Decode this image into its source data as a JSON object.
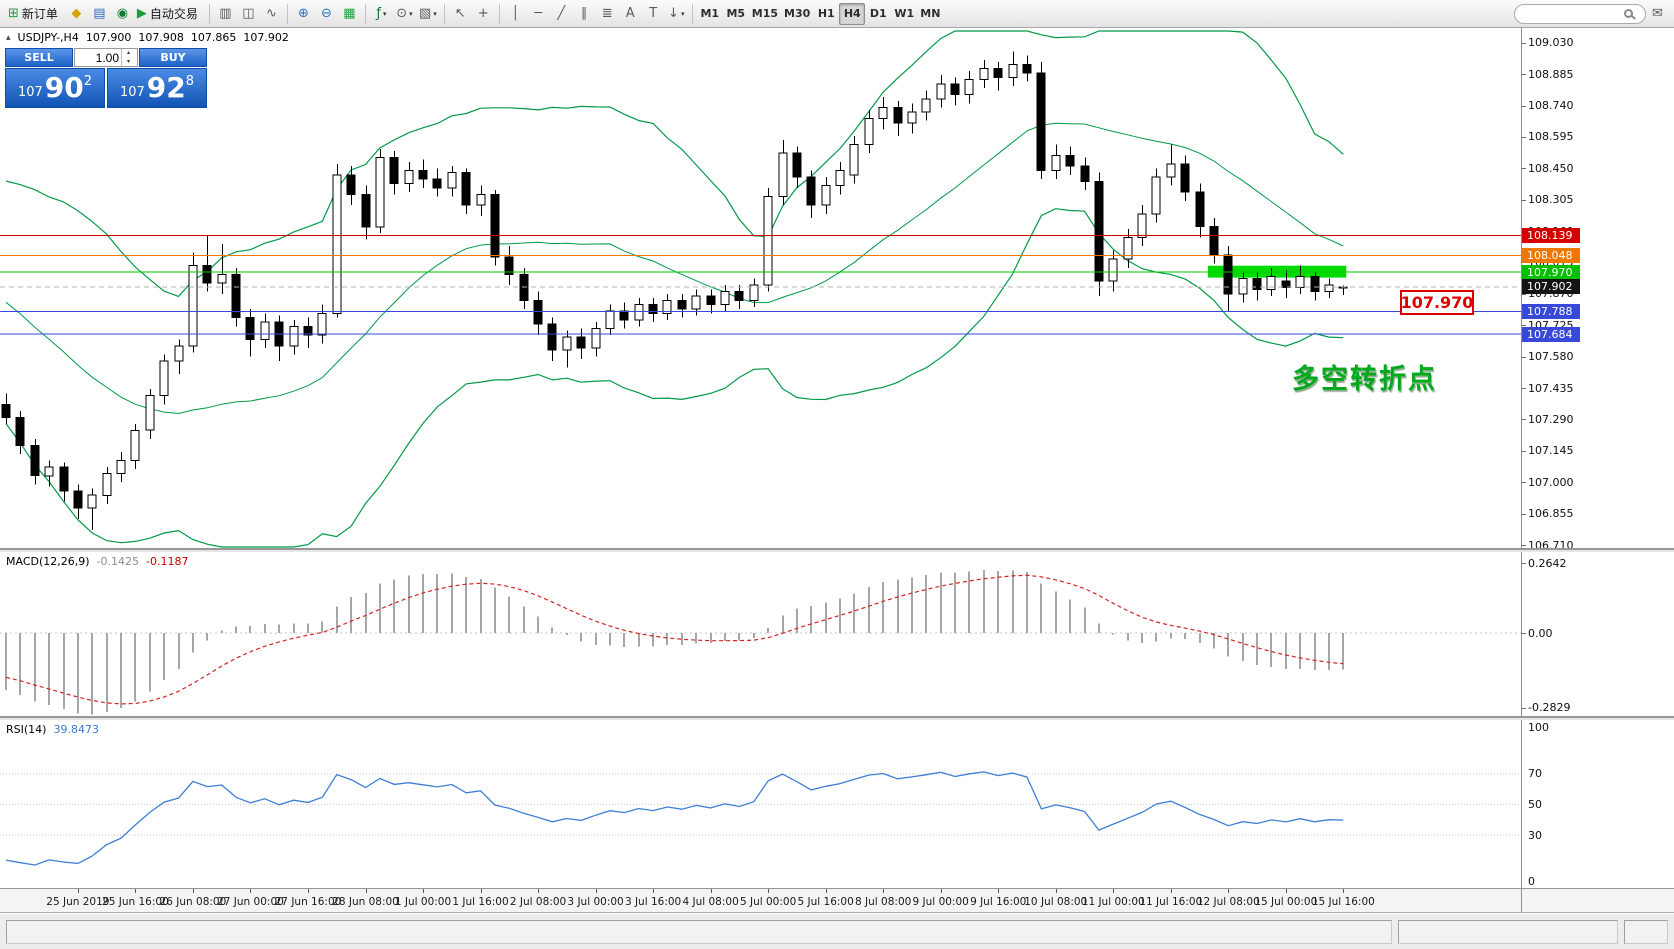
{
  "icons": {
    "new_order": "⊞",
    "metaeditor": "◆",
    "market_watch": "▤",
    "navigator": "◉",
    "autotrading_play": "▶",
    "bar_chart": "▥",
    "candle_chart": "◫",
    "line_chart": "∿",
    "zoom_in": "⊕",
    "zoom_out": "⊖",
    "tile_windows": "▦",
    "indicators": "ƒ",
    "periods": "⊙",
    "templates": "▧",
    "cursor": "↖",
    "crosshair": "+",
    "vline": "│",
    "hline": "─",
    "trendline": "╱",
    "channel": "∥",
    "fibonacci": "≣",
    "text": "A",
    "label": "T",
    "arrows": "↓",
    "caret": "▾",
    "collapse": "▴",
    "spin_up": "▴",
    "spin_down": "▾",
    "mail": "✉"
  },
  "toolbar": {
    "new_order": "新订单",
    "autotrading": "自动交易",
    "timeframes": [
      "M1",
      "M5",
      "M15",
      "M30",
      "H1",
      "H4",
      "D1",
      "W1",
      "MN"
    ],
    "active_timeframe": "H4",
    "search_value": ""
  },
  "chart": {
    "header": {
      "symbol": "USDJPY-,H4",
      "open": "107.900",
      "high": "107.908",
      "low": "107.865",
      "close": "107.902"
    },
    "oct": {
      "sell": "SELL",
      "buy": "BUY",
      "lot": "1.00",
      "sell_price": {
        "prefix": "107",
        "big": "90",
        "sup": "2"
      },
      "buy_price": {
        "prefix": "107",
        "big": "92",
        "sup": "8"
      }
    },
    "axis_ticks": [
      "109.030",
      "108.885",
      "108.740",
      "108.595",
      "108.450",
      "108.305",
      "108.160",
      "108.015",
      "107.870",
      "107.725",
      "107.580",
      "107.435",
      "107.290",
      "107.145",
      "107.000",
      "106.855",
      "106.710"
    ],
    "levels": [
      {
        "price": 108.139,
        "label": "108.139",
        "line_color": "#D40000",
        "box_color": "#D40000",
        "dashed": false
      },
      {
        "price": 108.048,
        "label": "108.048",
        "line_color": "#F07800",
        "box_color": "#F07800",
        "dashed": false
      },
      {
        "price": 107.97,
        "label": "107.970",
        "line_color": "#00C800",
        "box_color": "#00BE00",
        "dashed": false
      },
      {
        "price": 107.902,
        "label": "107.902",
        "line_color": "#B4B4B4",
        "box_color": "#141414",
        "dashed": true
      },
      {
        "price": 107.788,
        "label": "107.788",
        "line_color": "#3848D8",
        "box_color": "#3848D8",
        "dashed": false
      },
      {
        "price": 107.684,
        "label": "107.684",
        "line_color": "#3848D8",
        "box_color": "#3848D8",
        "dashed": false
      }
    ],
    "highlight_zone": {
      "price_top": 108.0,
      "price_bottom": 107.945,
      "color": "#00DC00"
    },
    "annotation_price_label": "107.970",
    "annotation_text": "多空转折点"
  },
  "macd": {
    "name": "MACD(12,26,9)",
    "value_main": "-0.1425",
    "value_signal": "-0.1187",
    "ticks": [
      {
        "label": "0.2642",
        "value": 0.2642
      },
      {
        "label": "0.00",
        "value": 0
      },
      {
        "label": "-0.2829",
        "value": -0.2829
      }
    ]
  },
  "rsi": {
    "name": "RSI(14)",
    "value": "39.8473",
    "ticks": [
      {
        "label": "100",
        "value": 100
      },
      {
        "label": "70",
        "value": 70
      },
      {
        "label": "50",
        "value": 50
      },
      {
        "label": "30",
        "value": 30
      },
      {
        "label": "0",
        "value": 0
      }
    ],
    "levels": [
      70,
      50,
      30
    ]
  },
  "time_axis": [
    "25 Jun 2019",
    "25 Jun 16:00",
    "26 Jun 08:00",
    "27 Jun 00:00",
    "27 Jun 16:00",
    "28 Jun 08:00",
    "1 Jul 00:00",
    "1 Jul 16:00",
    "2 Jul 08:00",
    "3 Jul 00:00",
    "3 Jul 16:00",
    "4 Jul 08:00",
    "5 Jul 00:00",
    "5 Jul 16:00",
    "8 Jul 08:00",
    "9 Jul 00:00",
    "9 Jul 16:00",
    "10 Jul 08:00",
    "11 Jul 00:00",
    "11 Jul 16:00",
    "12 Jul 08:00",
    "15 Jul 00:00",
    "15 Jul 16:00"
  ],
  "chart_data": {
    "type": "candlestick",
    "symbol": "USDJPY-",
    "timeframe": "H4",
    "visible_price_range": [
      106.698,
      109.098
    ],
    "last_bar": {
      "open": 107.9,
      "high": 107.908,
      "low": 107.865,
      "close": 107.902
    },
    "overlays": [
      {
        "name": "Bollinger Bands",
        "color": "#009A46"
      },
      {
        "name": "MACD",
        "params": "12,26,9",
        "main": -0.1425,
        "signal": -0.1187,
        "scale": [
          -0.2829,
          0.2642
        ]
      },
      {
        "name": "RSI",
        "params": "14",
        "value": 39.8473,
        "scale": [
          0,
          100
        ]
      }
    ],
    "ohlc_format": [
      "open",
      "high",
      "low",
      "close"
    ],
    "ohlc": [
      [
        107.36,
        107.41,
        107.27,
        107.3
      ],
      [
        107.3,
        107.33,
        107.13,
        107.17
      ],
      [
        107.17,
        107.2,
        106.99,
        107.03
      ],
      [
        107.03,
        107.1,
        106.98,
        107.07
      ],
      [
        107.07,
        107.09,
        106.91,
        106.96
      ],
      [
        106.96,
        106.99,
        106.83,
        106.88
      ],
      [
        106.88,
        106.97,
        106.78,
        106.94
      ],
      [
        106.94,
        107.07,
        106.9,
        107.04
      ],
      [
        107.04,
        107.14,
        107.0,
        107.1
      ],
      [
        107.1,
        107.27,
        107.06,
        107.24
      ],
      [
        107.24,
        107.43,
        107.2,
        107.4
      ],
      [
        107.4,
        107.59,
        107.36,
        107.56
      ],
      [
        107.56,
        107.66,
        107.5,
        107.63
      ],
      [
        107.63,
        108.06,
        107.6,
        108.0
      ],
      [
        108.0,
        108.14,
        107.88,
        107.92
      ],
      [
        107.92,
        108.1,
        107.87,
        107.96
      ],
      [
        107.96,
        107.99,
        107.72,
        107.76
      ],
      [
        107.76,
        107.8,
        107.58,
        107.66
      ],
      [
        107.66,
        107.78,
        107.62,
        107.74
      ],
      [
        107.74,
        107.77,
        107.56,
        107.63
      ],
      [
        107.63,
        107.75,
        107.59,
        107.72
      ],
      [
        107.72,
        107.76,
        107.62,
        107.68
      ],
      [
        107.68,
        107.82,
        107.64,
        107.78
      ],
      [
        107.78,
        108.47,
        107.76,
        108.42
      ],
      [
        108.42,
        108.46,
        108.28,
        108.33
      ],
      [
        108.33,
        108.37,
        108.12,
        108.18
      ],
      [
        108.18,
        108.54,
        108.15,
        108.5
      ],
      [
        108.5,
        108.53,
        108.33,
        108.38
      ],
      [
        108.38,
        108.48,
        108.34,
        108.44
      ],
      [
        108.44,
        108.49,
        108.36,
        108.4
      ],
      [
        108.4,
        108.45,
        108.32,
        108.36
      ],
      [
        108.36,
        108.46,
        108.32,
        108.43
      ],
      [
        108.43,
        108.45,
        108.24,
        108.28
      ],
      [
        108.28,
        108.37,
        108.23,
        108.33
      ],
      [
        108.33,
        108.35,
        108.0,
        108.04
      ],
      [
        108.04,
        108.09,
        107.91,
        107.96
      ],
      [
        107.96,
        107.99,
        107.8,
        107.84
      ],
      [
        107.84,
        107.88,
        107.68,
        107.73
      ],
      [
        107.73,
        107.76,
        107.56,
        107.61
      ],
      [
        107.61,
        107.7,
        107.53,
        107.67
      ],
      [
        107.67,
        107.71,
        107.57,
        107.62
      ],
      [
        107.62,
        107.74,
        107.58,
        107.71
      ],
      [
        107.71,
        107.82,
        107.68,
        107.79
      ],
      [
        107.79,
        107.83,
        107.71,
        107.75
      ],
      [
        107.75,
        107.85,
        107.72,
        107.82
      ],
      [
        107.82,
        107.85,
        107.74,
        107.78
      ],
      [
        107.78,
        107.87,
        107.75,
        107.84
      ],
      [
        107.84,
        107.87,
        107.76,
        107.8
      ],
      [
        107.8,
        107.89,
        107.77,
        107.86
      ],
      [
        107.86,
        107.89,
        107.78,
        107.82
      ],
      [
        107.82,
        107.91,
        107.79,
        107.88
      ],
      [
        107.88,
        107.91,
        107.8,
        107.84
      ],
      [
        107.84,
        107.94,
        107.81,
        107.91
      ],
      [
        107.91,
        108.36,
        107.88,
        108.32
      ],
      [
        108.32,
        108.58,
        108.28,
        108.52
      ],
      [
        108.52,
        108.55,
        108.36,
        108.41
      ],
      [
        108.41,
        108.44,
        108.22,
        108.28
      ],
      [
        108.28,
        108.41,
        108.24,
        108.37
      ],
      [
        108.37,
        108.48,
        108.33,
        108.44
      ],
      [
        108.42,
        108.6,
        108.38,
        108.56
      ],
      [
        108.56,
        108.72,
        108.52,
        108.68
      ],
      [
        108.68,
        108.78,
        108.63,
        108.73
      ],
      [
        108.73,
        108.76,
        108.6,
        108.66
      ],
      [
        108.66,
        108.75,
        108.61,
        108.71
      ],
      [
        108.71,
        108.81,
        108.67,
        108.77
      ],
      [
        108.77,
        108.88,
        108.73,
        108.84
      ],
      [
        108.84,
        108.87,
        108.74,
        108.79
      ],
      [
        108.79,
        108.9,
        108.75,
        108.86
      ],
      [
        108.86,
        108.95,
        108.82,
        108.91
      ],
      [
        108.91,
        108.94,
        108.81,
        108.87
      ],
      [
        108.87,
        108.99,
        108.83,
        108.93
      ],
      [
        108.93,
        108.97,
        108.85,
        108.89
      ],
      [
        108.89,
        108.94,
        108.4,
        108.44
      ],
      [
        108.44,
        108.56,
        108.4,
        108.51
      ],
      [
        108.51,
        108.55,
        108.42,
        108.46
      ],
      [
        108.46,
        108.5,
        108.35,
        108.39
      ],
      [
        108.39,
        108.43,
        107.86,
        107.93
      ],
      [
        107.93,
        108.07,
        107.88,
        108.03
      ],
      [
        108.03,
        108.17,
        107.99,
        108.13
      ],
      [
        108.13,
        108.28,
        108.09,
        108.24
      ],
      [
        108.24,
        108.45,
        108.2,
        108.41
      ],
      [
        108.41,
        108.56,
        108.37,
        108.47
      ],
      [
        108.47,
        108.51,
        108.3,
        108.34
      ],
      [
        108.34,
        108.38,
        108.13,
        108.18
      ],
      [
        108.18,
        108.22,
        108.01,
        108.05
      ],
      [
        108.05,
        108.09,
        107.79,
        107.87
      ],
      [
        107.87,
        107.97,
        107.83,
        107.94
      ],
      [
        107.94,
        107.97,
        107.84,
        107.89
      ],
      [
        107.89,
        107.99,
        107.86,
        107.95
      ],
      [
        107.93,
        107.98,
        107.85,
        107.9
      ],
      [
        107.9,
        108.0,
        107.87,
        107.95
      ],
      [
        107.95,
        107.97,
        107.84,
        107.88
      ],
      [
        107.88,
        107.94,
        107.85,
        107.91
      ],
      [
        107.9,
        107.908,
        107.865,
        107.902
      ]
    ]
  }
}
